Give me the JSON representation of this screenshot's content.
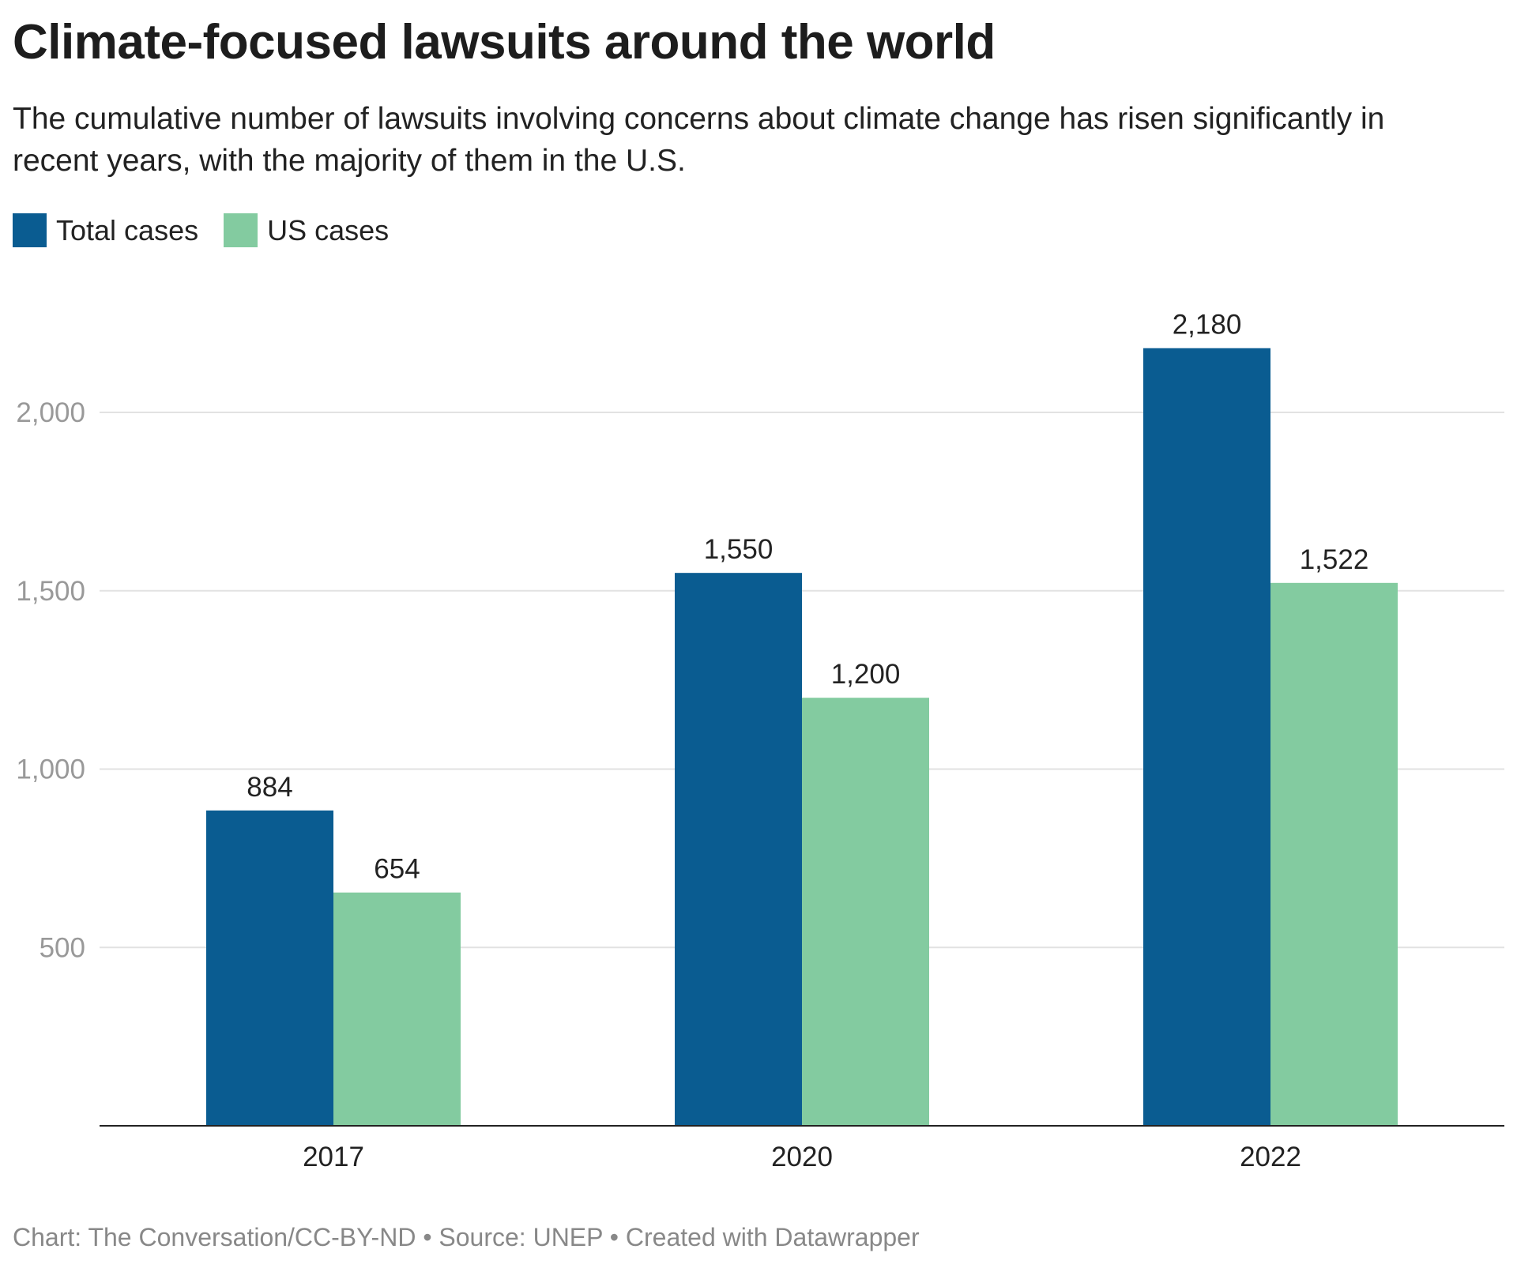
{
  "chart_data": {
    "type": "bar",
    "title": "Climate-focused lawsuits around the world",
    "subtitle": "The cumulative number of lawsuits involving concerns about climate change has risen significantly in recent years, with the majority of them in the U.S.",
    "categories": [
      "2017",
      "2020",
      "2022"
    ],
    "series": [
      {
        "name": "Total cases",
        "values": [
          884,
          1550,
          2180
        ],
        "labels": [
          "884",
          "1,550",
          "2,180"
        ],
        "color": "#0a5c91"
      },
      {
        "name": "US cases",
        "values": [
          654,
          1200,
          1522
        ],
        "labels": [
          "654",
          "1,200",
          "1,522"
        ],
        "color": "#83cba0"
      }
    ],
    "yticks": [
      500,
      1000,
      1500,
      2000
    ],
    "ytick_labels": [
      "500",
      "1,000",
      "1,500",
      "2,000"
    ],
    "ylim": [
      0,
      2000
    ],
    "grid": true,
    "legend_position": "top-left",
    "footer": "Chart: The Conversation/CC-BY-ND • Source: UNEP  • Created with Datawrapper"
  }
}
